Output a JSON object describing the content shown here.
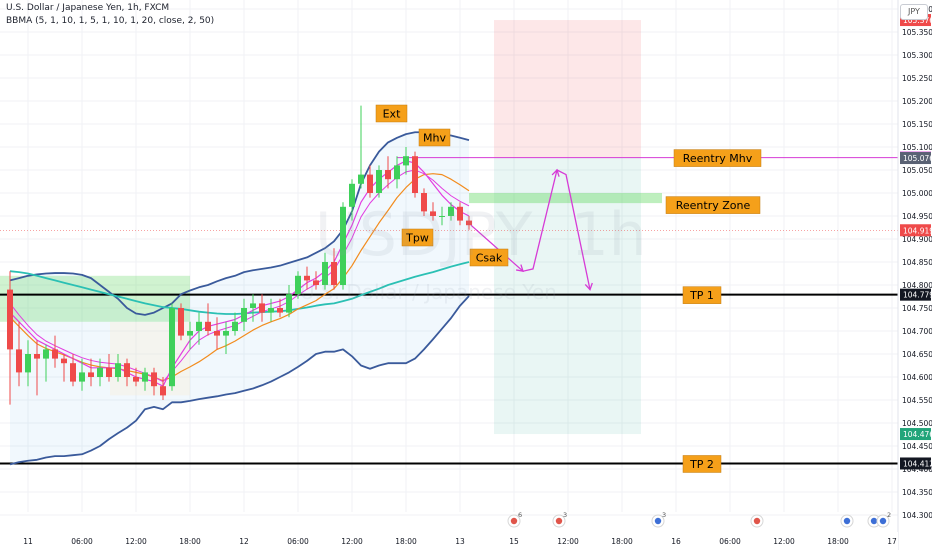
{
  "header": {
    "symbol": "U.S. Dollar / Japanese Yen, 1h, FXCM",
    "indicator": "BBMA (5, 1, 10, 1, 5, 1, 10, 1, 20, close, 2, 50)",
    "currency_btn": "JPY"
  },
  "watermark": {
    "ticker": "USDJPY",
    "tf": "1h",
    "name": "U.S. Dollar / Japanese Yen"
  },
  "colors": {
    "up": "#3fd05a",
    "down": "#ef4a4a",
    "ma_magenta": "#e23ee0",
    "ma_orange": "#f28c1e",
    "bb": "#3a5a9b",
    "ema50": "#2bc0b4",
    "label_bg": "#f5a01a",
    "annotation": "#d63bd6"
  },
  "chart_data": {
    "type": "candlestick",
    "y_axis": {
      "range": [
        104.277,
        105.405
      ],
      "ticks": [
        "105.400",
        "105.350",
        "105.300",
        "105.250",
        "105.200",
        "105.150",
        "105.100",
        "105.050",
        "105.000",
        "104.950",
        "104.900",
        "104.850",
        "104.800",
        "104.750",
        "104.700",
        "104.650",
        "104.600",
        "104.550",
        "104.500",
        "104.450",
        "104.400",
        "104.350",
        "104.300"
      ]
    },
    "x_axis": {
      "ticks": [
        {
          "label": "11",
          "i": 2
        },
        {
          "label": "06:00",
          "i": 8
        },
        {
          "label": "12:00",
          "i": 14
        },
        {
          "label": "18:00",
          "i": 20
        },
        {
          "label": "12",
          "i": 26
        },
        {
          "label": "06:00",
          "i": 32
        },
        {
          "label": "12:00",
          "i": 38
        },
        {
          "label": "18:00",
          "i": 44
        },
        {
          "label": "13",
          "i": 50
        },
        {
          "label": "15",
          "i": 56
        },
        {
          "label": "12:00",
          "i": 62
        },
        {
          "label": "18:00",
          "i": 68
        },
        {
          "label": "16",
          "i": 74
        },
        {
          "label": "06:00",
          "i": 80
        },
        {
          "label": "12:00",
          "i": 86
        },
        {
          "label": "18:00",
          "i": 92
        },
        {
          "label": "17",
          "i": 98
        }
      ]
    },
    "candles": [
      {
        "o": 104.79,
        "h": 104.83,
        "l": 104.54,
        "c": 104.66
      },
      {
        "o": 104.66,
        "h": 104.72,
        "l": 104.58,
        "c": 104.61
      },
      {
        "o": 104.61,
        "h": 104.68,
        "l": 104.58,
        "c": 104.65
      },
      {
        "o": 104.65,
        "h": 104.68,
        "l": 104.56,
        "c": 104.64
      },
      {
        "o": 104.64,
        "h": 104.67,
        "l": 104.59,
        "c": 104.66
      },
      {
        "o": 104.66,
        "h": 104.69,
        "l": 104.62,
        "c": 104.64
      },
      {
        "o": 104.64,
        "h": 104.65,
        "l": 104.59,
        "c": 104.63
      },
      {
        "o": 104.63,
        "h": 104.65,
        "l": 104.58,
        "c": 104.59
      },
      {
        "o": 104.59,
        "h": 104.64,
        "l": 104.57,
        "c": 104.61
      },
      {
        "o": 104.61,
        "h": 104.64,
        "l": 104.58,
        "c": 104.6
      },
      {
        "o": 104.6,
        "h": 104.64,
        "l": 104.58,
        "c": 104.62
      },
      {
        "o": 104.62,
        "h": 104.65,
        "l": 104.59,
        "c": 104.6
      },
      {
        "o": 104.6,
        "h": 104.65,
        "l": 104.59,
        "c": 104.63
      },
      {
        "o": 104.63,
        "h": 104.64,
        "l": 104.58,
        "c": 104.6
      },
      {
        "o": 104.6,
        "h": 104.62,
        "l": 104.58,
        "c": 104.59
      },
      {
        "o": 104.59,
        "h": 104.62,
        "l": 104.57,
        "c": 104.61
      },
      {
        "o": 104.61,
        "h": 104.62,
        "l": 104.56,
        "c": 104.58
      },
      {
        "o": 104.58,
        "h": 104.6,
        "l": 104.55,
        "c": 104.56
      },
      {
        "o": 104.58,
        "h": 104.76,
        "l": 104.57,
        "c": 104.75
      },
      {
        "o": 104.75,
        "h": 104.76,
        "l": 104.68,
        "c": 104.69
      },
      {
        "o": 104.69,
        "h": 104.72,
        "l": 104.66,
        "c": 104.7
      },
      {
        "o": 104.7,
        "h": 104.74,
        "l": 104.67,
        "c": 104.72
      },
      {
        "o": 104.72,
        "h": 104.76,
        "l": 104.69,
        "c": 104.7
      },
      {
        "o": 104.7,
        "h": 104.73,
        "l": 104.66,
        "c": 104.69
      },
      {
        "o": 104.69,
        "h": 104.72,
        "l": 104.65,
        "c": 104.7
      },
      {
        "o": 104.7,
        "h": 104.74,
        "l": 104.69,
        "c": 104.72
      },
      {
        "o": 104.72,
        "h": 104.77,
        "l": 104.7,
        "c": 104.75
      },
      {
        "o": 104.75,
        "h": 104.78,
        "l": 104.72,
        "c": 104.76
      },
      {
        "o": 104.76,
        "h": 104.78,
        "l": 104.72,
        "c": 104.74
      },
      {
        "o": 104.74,
        "h": 104.77,
        "l": 104.72,
        "c": 104.75
      },
      {
        "o": 104.75,
        "h": 104.77,
        "l": 104.73,
        "c": 104.74
      },
      {
        "o": 104.74,
        "h": 104.8,
        "l": 104.73,
        "c": 104.78
      },
      {
        "o": 104.78,
        "h": 104.83,
        "l": 104.77,
        "c": 104.82
      },
      {
        "o": 104.82,
        "h": 104.84,
        "l": 104.79,
        "c": 104.81
      },
      {
        "o": 104.81,
        "h": 104.83,
        "l": 104.79,
        "c": 104.8
      },
      {
        "o": 104.8,
        "h": 104.87,
        "l": 104.79,
        "c": 104.85
      },
      {
        "o": 104.85,
        "h": 104.88,
        "l": 104.79,
        "c": 104.8
      },
      {
        "o": 104.8,
        "h": 104.98,
        "l": 104.79,
        "c": 104.97
      },
      {
        "o": 104.97,
        "h": 105.03,
        "l": 104.94,
        "c": 105.02
      },
      {
        "o": 105.02,
        "h": 105.19,
        "l": 105.01,
        "c": 105.04
      },
      {
        "o": 105.04,
        "h": 105.06,
        "l": 104.99,
        "c": 105.0
      },
      {
        "o": 105.0,
        "h": 105.06,
        "l": 104.99,
        "c": 105.05
      },
      {
        "o": 105.05,
        "h": 105.08,
        "l": 105.01,
        "c": 105.03
      },
      {
        "o": 105.03,
        "h": 105.08,
        "l": 105.01,
        "c": 105.06
      },
      {
        "o": 105.06,
        "h": 105.1,
        "l": 105.04,
        "c": 105.08
      },
      {
        "o": 105.08,
        "h": 105.09,
        "l": 104.99,
        "c": 105.0
      },
      {
        "o": 105.0,
        "h": 105.01,
        "l": 104.95,
        "c": 104.96
      },
      {
        "o": 104.96,
        "h": 104.98,
        "l": 104.94,
        "c": 104.95
      },
      {
        "o": 104.95,
        "h": 104.97,
        "l": 104.93,
        "c": 104.95
      },
      {
        "o": 104.95,
        "h": 104.98,
        "l": 104.94,
        "c": 104.97
      },
      {
        "o": 104.97,
        "h": 104.98,
        "l": 104.93,
        "c": 104.94
      },
      {
        "o": 104.94,
        "h": 104.95,
        "l": 104.92,
        "c": 104.93
      }
    ],
    "ema50": [
      104.83,
      104.828,
      104.825,
      104.82,
      104.815,
      104.81,
      104.805,
      104.8,
      104.795,
      104.79,
      104.785,
      104.78,
      104.775,
      104.77,
      104.765,
      104.76,
      104.756,
      104.752,
      104.75,
      104.748,
      104.745,
      104.742,
      104.74,
      104.738,
      104.737,
      104.737,
      104.738,
      104.74,
      104.741,
      104.742,
      104.743,
      104.745,
      104.748,
      104.751,
      104.755,
      104.758,
      104.76,
      104.765,
      104.77,
      104.778,
      104.785,
      104.792,
      104.8,
      104.806,
      104.812,
      104.818,
      104.823,
      104.828,
      104.834,
      104.84,
      104.845,
      104.85
    ],
    "bb_upper": [
      104.81,
      104.815,
      104.82,
      104.823,
      104.825,
      104.826,
      104.826,
      104.825,
      104.822,
      104.815,
      104.8,
      104.785,
      104.77,
      104.75,
      104.738,
      104.735,
      104.74,
      104.75,
      104.76,
      104.78,
      104.788,
      104.795,
      104.8,
      104.808,
      104.815,
      104.82,
      104.828,
      104.832,
      104.835,
      104.838,
      104.842,
      104.848,
      104.854,
      104.86,
      104.87,
      104.88,
      104.895,
      104.92,
      104.96,
      105.02,
      105.06,
      105.09,
      105.11,
      105.12,
      105.128,
      105.132,
      105.132,
      105.13,
      105.128,
      105.125,
      105.12,
      105.115
    ],
    "bb_lower": [
      104.41,
      104.415,
      104.418,
      104.42,
      104.425,
      104.428,
      104.428,
      104.43,
      104.432,
      104.44,
      104.45,
      104.465,
      104.478,
      104.49,
      104.505,
      104.53,
      104.535,
      104.53,
      104.545,
      104.545,
      104.548,
      104.552,
      104.555,
      104.558,
      104.562,
      104.565,
      104.57,
      104.575,
      104.582,
      104.59,
      104.6,
      104.61,
      104.622,
      104.635,
      104.65,
      104.655,
      104.655,
      104.66,
      104.645,
      104.625,
      104.618,
      104.625,
      104.63,
      104.63,
      104.63,
      104.64,
      104.66,
      104.682,
      104.705,
      104.728,
      104.755,
      104.776
    ],
    "ma_orange": [
      104.73,
      104.71,
      104.69,
      104.672,
      104.662,
      104.655,
      104.648,
      104.64,
      104.632,
      104.626,
      104.622,
      104.62,
      104.618,
      104.614,
      104.61,
      104.606,
      104.6,
      104.592,
      104.6,
      104.612,
      104.622,
      104.633,
      104.646,
      104.66,
      104.668,
      104.678,
      104.69,
      104.702,
      104.712,
      104.72,
      104.727,
      104.736,
      104.748,
      104.757,
      104.766,
      104.78,
      104.792,
      104.815,
      104.842,
      104.875,
      104.905,
      104.935,
      104.962,
      104.99,
      105.012,
      105.03,
      105.04,
      105.042,
      105.04,
      105.03,
      105.018,
      105.005
    ],
    "ma_mag1": [
      104.74,
      104.72,
      104.7,
      104.68,
      104.67,
      104.66,
      104.65,
      104.64,
      104.63,
      104.62,
      104.62,
      104.62,
      104.62,
      104.61,
      104.6,
      104.595,
      104.59,
      104.58,
      104.62,
      104.65,
      104.68,
      104.7,
      104.71,
      104.715,
      104.72,
      104.725,
      104.735,
      104.745,
      104.755,
      104.76,
      104.765,
      104.775,
      104.79,
      104.805,
      104.815,
      104.83,
      104.85,
      104.89,
      104.93,
      104.98,
      105.01,
      105.03,
      105.045,
      105.06,
      105.07,
      105.065,
      105.045,
      105.02,
      104.995,
      104.975,
      104.96,
      104.95
    ],
    "ma_mag2": [
      104.76,
      104.735,
      104.712,
      104.692,
      104.678,
      104.668,
      104.659,
      104.65,
      104.642,
      104.636,
      104.632,
      104.63,
      104.628,
      104.622,
      104.615,
      104.608,
      104.6,
      104.59,
      104.612,
      104.635,
      104.66,
      104.68,
      104.692,
      104.7,
      104.706,
      104.712,
      104.722,
      104.732,
      104.742,
      104.748,
      104.754,
      104.764,
      104.778,
      104.791,
      104.802,
      104.816,
      104.832,
      104.866,
      104.902,
      104.948,
      104.978,
      105.0,
      105.018,
      105.034,
      105.046,
      105.05,
      105.042,
      105.028,
      105.01,
      104.994,
      104.982,
      104.972
    ],
    "annotations": [
      {
        "text": "Ext",
        "at": "candle 39 high"
      },
      {
        "text": "Mhv",
        "at": "candle 44 high"
      },
      {
        "text": "Tpw",
        "at": "below candle 45"
      },
      {
        "text": "Csak",
        "at": "below candle 51"
      },
      {
        "text": "Reentry Mhv",
        "price": 105.077
      },
      {
        "text": "Reentry Zone",
        "price": 104.99
      },
      {
        "text": "TP 1",
        "price": 104.779
      },
      {
        "text": "TP 2",
        "price": 104.412
      }
    ],
    "position_tool": {
      "entry": 105.077,
      "stop": 105.376,
      "target": 104.476
    },
    "price_tags": [
      {
        "price": 105.376,
        "text": "105.376",
        "color": "#ef4a4a"
      },
      {
        "price": 105.077,
        "text": "105.077",
        "color": "#d63bd6"
      },
      {
        "price": 105.076,
        "text": "105.076",
        "color": "#5a6274"
      },
      {
        "price": 104.919,
        "text": "104.919",
        "color": "#ef4a4a"
      },
      {
        "price": 104.779,
        "text": "104.779",
        "color": "#131722"
      },
      {
        "price": 104.476,
        "text": "104.476",
        "color": "#22a57a"
      },
      {
        "price": 104.412,
        "text": "104.412",
        "color": "#131722"
      }
    ],
    "event_markers": [
      {
        "i": 56,
        "label": "6",
        "kind": "flag"
      },
      {
        "i": 61,
        "label": "3",
        "kind": "flag"
      },
      {
        "i": 72,
        "label": "3",
        "kind": "flag-us"
      },
      {
        "i": 83,
        "label": "",
        "kind": "flag"
      },
      {
        "i": 93,
        "label": "",
        "kind": "flag-us"
      },
      {
        "i": 96,
        "label": "",
        "kind": "flag-us"
      },
      {
        "i": 97,
        "label": "2",
        "kind": "flag-us"
      }
    ]
  }
}
